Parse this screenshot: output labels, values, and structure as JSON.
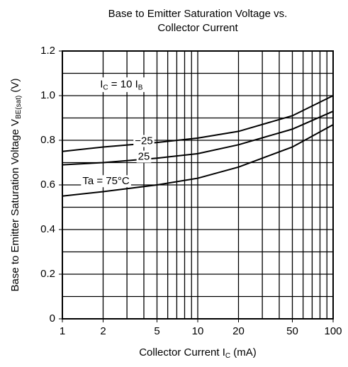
{
  "chart_data": {
    "type": "line",
    "title": [
      "Base to Emitter Saturation Voltage vs.",
      "Collector Current"
    ],
    "y_label": {
      "main": "Base to Emitter Saturation Voltage V",
      "sub": "BE(sat)",
      "unit": " (V)"
    },
    "x_label": {
      "main": "Collector Current I",
      "sub": "C",
      "unit": " (mA)"
    },
    "annotation": {
      "main": "I",
      "sub": "C",
      "mid": " = 10 I",
      "sub2": "B"
    },
    "x": [
      1,
      2,
      5,
      10,
      20,
      50,
      100
    ],
    "series": [
      {
        "name": "−25",
        "color": "#000",
        "values": [
          0.75,
          0.77,
          0.79,
          0.81,
          0.84,
          0.91,
          1.0
        ]
      },
      {
        "name": "25",
        "color": "#000",
        "values": [
          0.69,
          0.7,
          0.72,
          0.74,
          0.78,
          0.85,
          0.93
        ]
      },
      {
        "name": "Ta = 75°C",
        "color": "#000",
        "values": [
          0.55,
          0.57,
          0.6,
          0.63,
          0.68,
          0.77,
          0.87
        ]
      }
    ],
    "xlim": [
      1,
      100
    ],
    "xscale": "log",
    "xticks": [
      1,
      2,
      5,
      10,
      20,
      50,
      100
    ],
    "xgrid": [
      1,
      2,
      3,
      4,
      5,
      6,
      7,
      8,
      9,
      10,
      20,
      30,
      40,
      50,
      60,
      70,
      80,
      90,
      100
    ],
    "ylim": [
      0,
      1.2
    ],
    "yticks": [
      0,
      0.2,
      0.4,
      0.6,
      0.8,
      {
        "value": 1,
        "label": "1.0"
      },
      1.2
    ],
    "ygrid": [
      0,
      0.1,
      0.2,
      0.3,
      0.4,
      0.5,
      0.6,
      0.7,
      0.8,
      0.9,
      1,
      1.1,
      1.2
    ],
    "grid": true
  }
}
